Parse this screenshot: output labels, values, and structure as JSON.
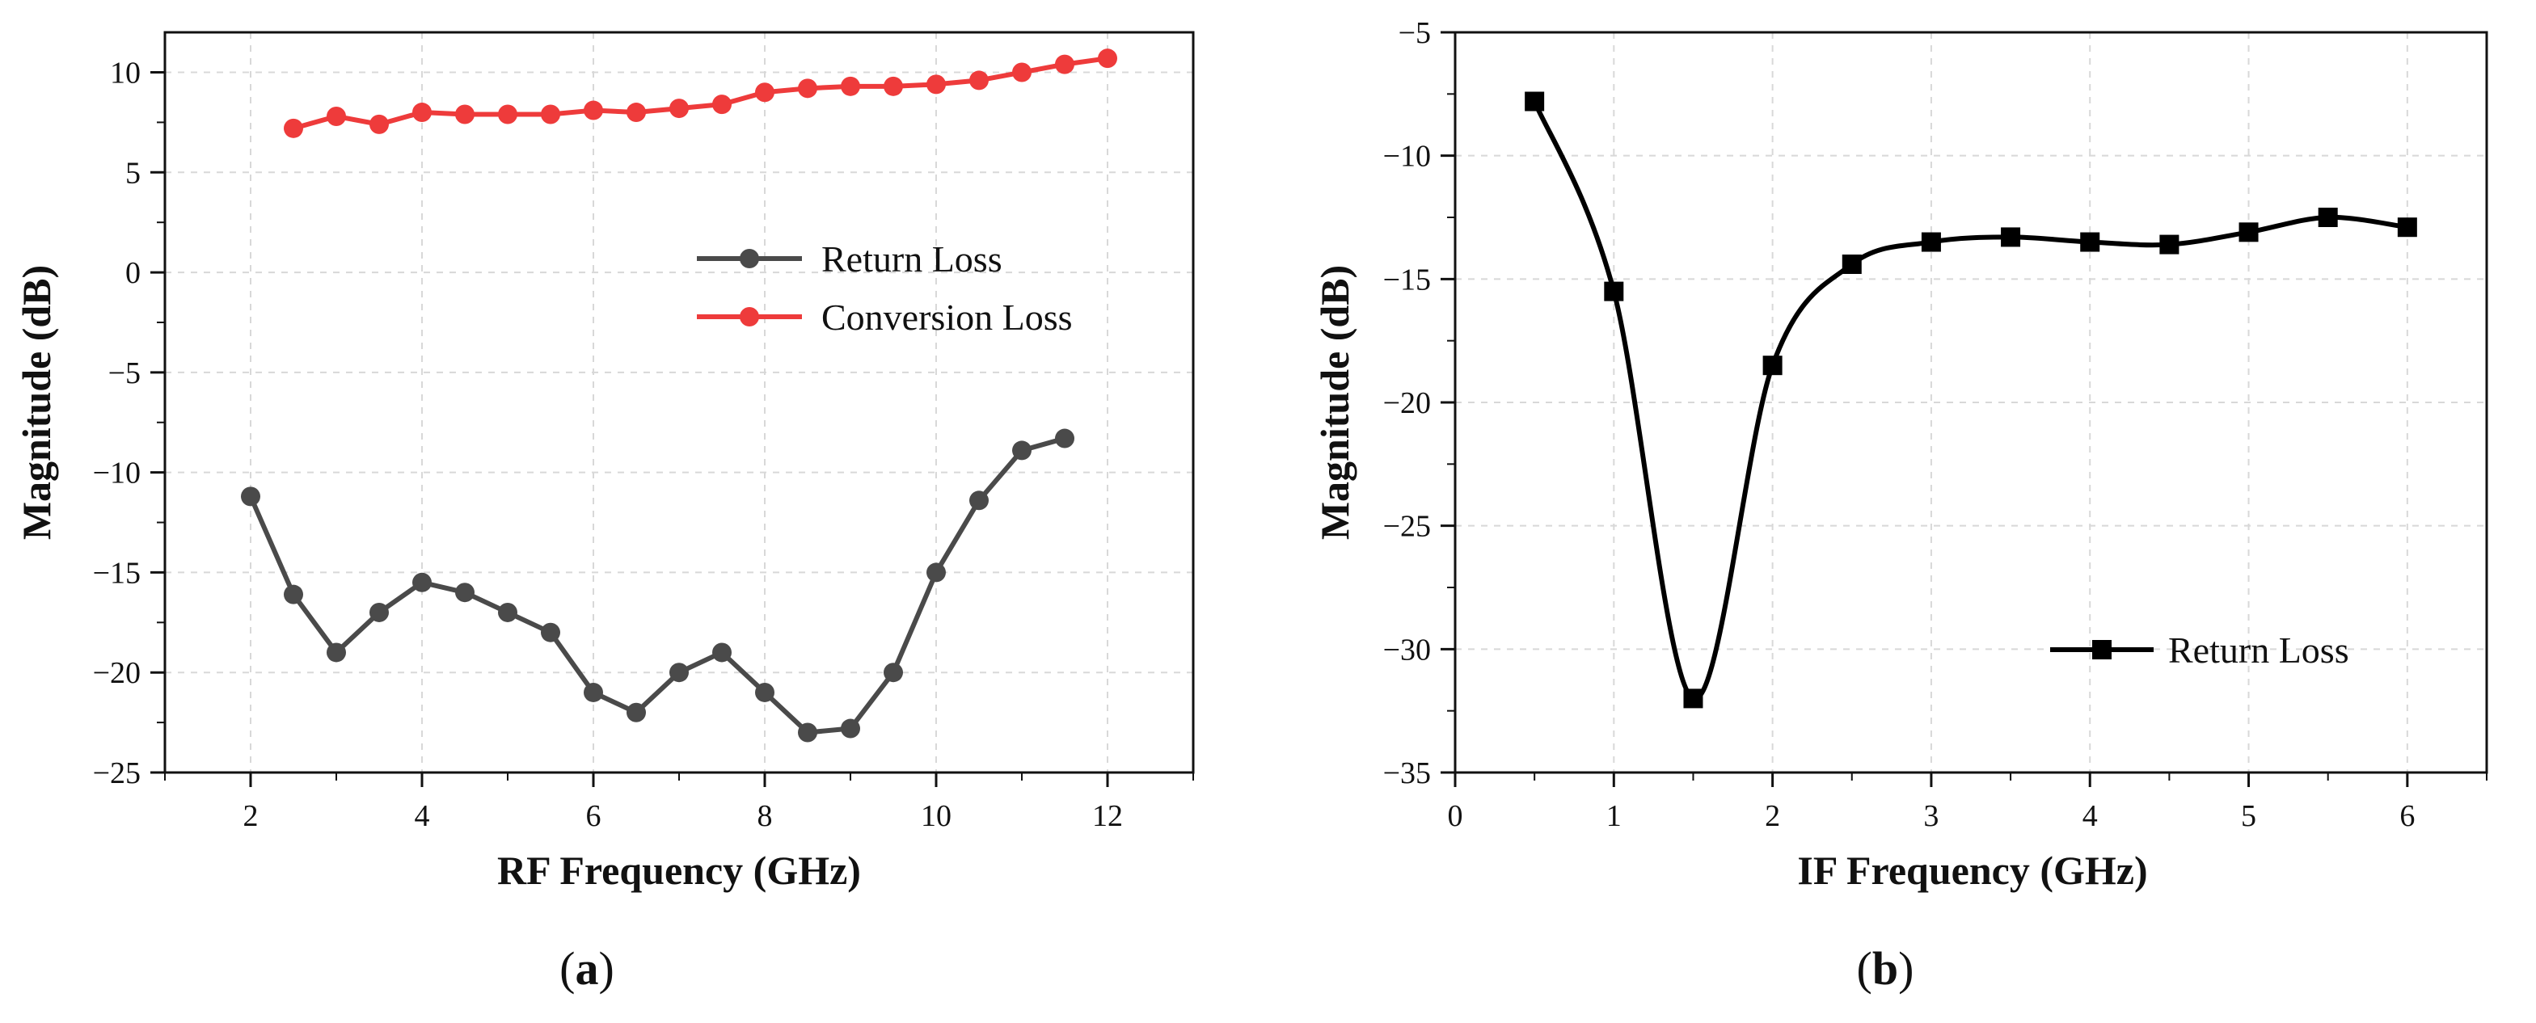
{
  "chart_data": [
    {
      "type": "line",
      "panel_label": "a",
      "title": "",
      "xlabel": "RF Frequency (GHz)",
      "ylabel": "Magnitude (dB)",
      "xlim": [
        1,
        13
      ],
      "ylim": [
        -25,
        12
      ],
      "xticks": [
        2,
        4,
        6,
        8,
        10,
        12
      ],
      "yticks": [
        -25,
        -20,
        -15,
        -10,
        -5,
        0,
        5,
        10
      ],
      "xtick_labels": [
        "2",
        "4",
        "6",
        "8",
        "10",
        "12"
      ],
      "ytick_labels": [
        "−25",
        "−20",
        "−15",
        "−10",
        "−5",
        "0",
        "5",
        "10"
      ],
      "grid": true,
      "legend_position": "center-right",
      "series": [
        {
          "name": "Return Loss",
          "color": "#4a4a4a",
          "marker": "circle",
          "smooth": false,
          "x": [
            2,
            2.5,
            3,
            3.5,
            4,
            4.5,
            5,
            5.5,
            6,
            6.5,
            7,
            7.5,
            8,
            8.5,
            9,
            9.5,
            10,
            10.5,
            11,
            11.5
          ],
          "values": [
            -11.2,
            -16.1,
            -19,
            -17,
            -15.5,
            -16,
            -17,
            -18,
            -21,
            -22,
            -20,
            -19,
            -21,
            -23,
            -22.8,
            -20,
            -15,
            -11.4,
            -8.9,
            -8.3
          ]
        },
        {
          "name": "Conversion Loss",
          "color": "#ee3b3b",
          "marker": "circle",
          "smooth": false,
          "x": [
            2.5,
            3,
            3.5,
            4,
            4.5,
            5,
            5.5,
            6,
            6.5,
            7,
            7.5,
            8,
            8.5,
            9,
            9.5,
            10,
            10.5,
            11,
            11.5,
            12
          ],
          "values": [
            7.2,
            7.8,
            7.4,
            8,
            7.9,
            7.9,
            7.9,
            8.1,
            8,
            8.2,
            8.4,
            9,
            9.2,
            9.3,
            9.3,
            9.4,
            9.6,
            10,
            10.4,
            10.7
          ]
        }
      ]
    },
    {
      "type": "line",
      "panel_label": "b",
      "title": "",
      "xlabel": "IF Frequency (GHz)",
      "ylabel": "Magnitude (dB)",
      "xlim": [
        0,
        6.5
      ],
      "ylim": [
        -35,
        -5
      ],
      "xticks": [
        0,
        1,
        2,
        3,
        4,
        5,
        6
      ],
      "yticks": [
        -35,
        -30,
        -25,
        -20,
        -15,
        -10,
        -5
      ],
      "xtick_labels": [
        "0",
        "1",
        "2",
        "3",
        "4",
        "5",
        "6"
      ],
      "ytick_labels": [
        "−35",
        "−30",
        "−25",
        "−20",
        "−15",
        "−10",
        "−5"
      ],
      "grid": true,
      "legend_position": "bottom-right",
      "series": [
        {
          "name": "Return Loss",
          "color": "#000000",
          "marker": "square",
          "smooth": true,
          "x": [
            0.5,
            1,
            1.5,
            2,
            2.5,
            3,
            3.5,
            4,
            4.5,
            5,
            5.5,
            6
          ],
          "values": [
            -7.8,
            -15.5,
            -32,
            -18.5,
            -14.4,
            -13.5,
            -13.3,
            -13.5,
            -13.6,
            -13.1,
            -12.5,
            -12.9
          ]
        }
      ]
    }
  ]
}
